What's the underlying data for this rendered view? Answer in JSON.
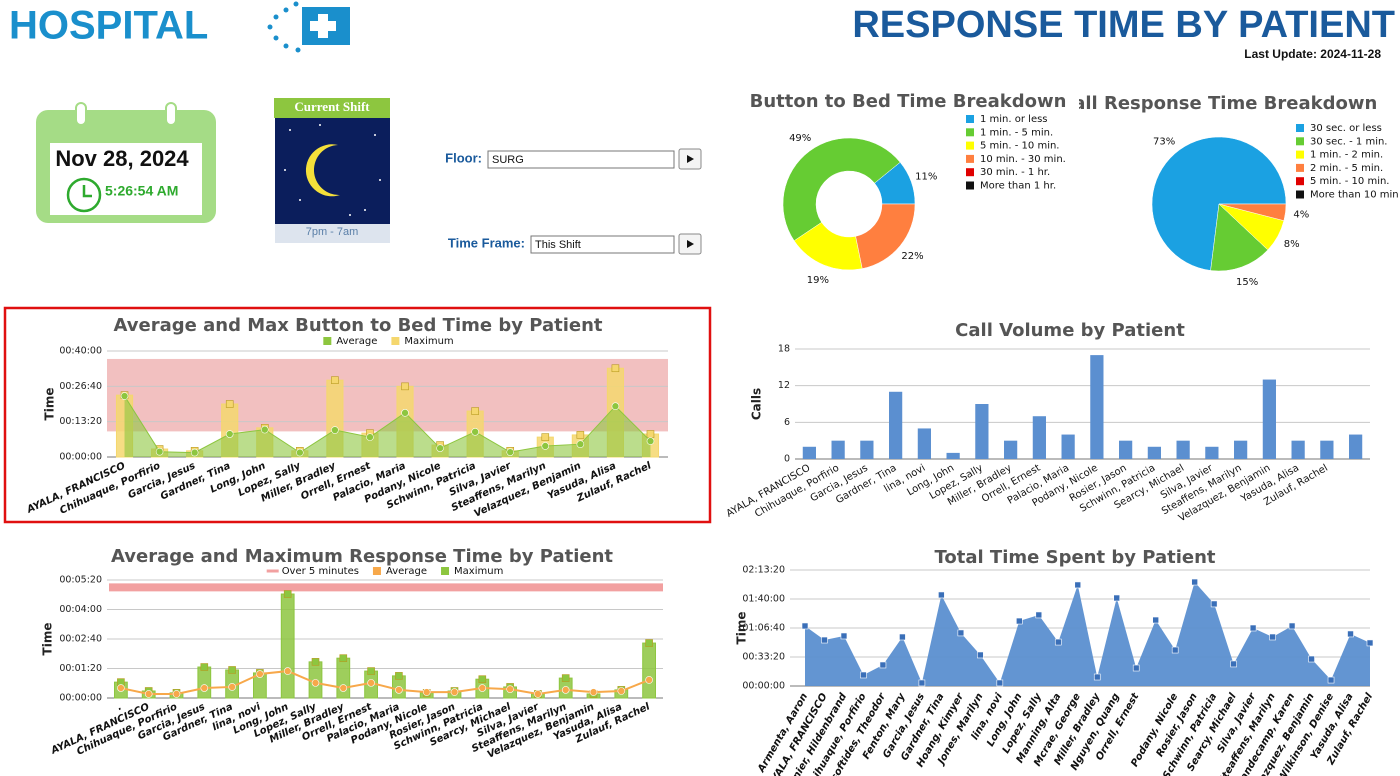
{
  "header": {
    "brand": "HOSPITAL",
    "title": "RESPONSE TIME BY PATIENT",
    "last_update": "Last Update: 2024-11-28"
  },
  "clock": {
    "date": "Nov 28, 2024",
    "time": "5:26:54 AM"
  },
  "shift": {
    "label": "Current Shift",
    "hours": "7pm - 7am"
  },
  "filters": [
    {
      "label": "Floor:",
      "value": "SURG"
    },
    {
      "label": "Time Frame:",
      "value": "This Shift"
    }
  ],
  "chart_data": [
    {
      "type": "pie",
      "donut": true,
      "title": "Button to Bed Time Breakdown",
      "categories": [
        "1 min. or less",
        "1 min. - 5 min.",
        "5 min. - 10 min.",
        "10 min. - 30 min.",
        "30 min. - 1 hr.",
        "More than 1 hr."
      ],
      "values": [
        11,
        49,
        19,
        22,
        0,
        0
      ],
      "value_labels": [
        "11%",
        "49%",
        "19%",
        "22%",
        null,
        null
      ],
      "colors": [
        "#1ba1e2",
        "#66cc33",
        "#ffff00",
        "#ff7f3f",
        "#e00000",
        "#111111"
      ]
    },
    {
      "type": "pie",
      "donut": false,
      "title": "Call Response Time Breakdown",
      "categories": [
        "30 sec. or less",
        "30 sec. - 1 min.",
        "1 min. - 2 min.",
        "2 min. - 5 min.",
        "5 min. - 10 min.",
        "More than 10 min"
      ],
      "values": [
        73,
        15,
        8,
        4,
        0,
        0
      ],
      "value_labels": [
        "73%",
        "15%",
        "8%",
        "4%",
        null,
        null
      ],
      "colors": [
        "#1ba1e2",
        "#66cc33",
        "#ffff00",
        "#ff7f3f",
        "#e00000",
        "#111111"
      ]
    },
    {
      "type": "combo",
      "title": "Average and Max Button to Bed Time by Patient",
      "ylabel": "Time",
      "categories": [
        "AYALA, FRANCISCO",
        "Chihuaque, Porfirio",
        "Garcia, Jesus",
        "Gardner, Tina",
        "Long, John",
        "Lopez, Sally",
        "Miller, Bradley",
        "Orrell, Ernest",
        "Palacio, Maria",
        "Podany, Nicole",
        "Schwinn, Patricia",
        "Silva, Javier",
        "Steaffens, Marilyn",
        "Velazquez, Benjamin",
        "Yasuda, Alisa",
        "Zulauf, Rachel"
      ],
      "ylim": [
        0,
        2400
      ],
      "yticks": [
        {
          "value": 0,
          "label": "00:00:00"
        },
        {
          "value": 800,
          "label": "00:13:20"
        },
        {
          "value": 1600,
          "label": "00:26:40"
        },
        {
          "value": 2400,
          "label": "00:40:00"
        }
      ],
      "band": {
        "from": 580,
        "to": 2220,
        "color": "#f2c0c0"
      },
      "series": [
        {
          "name": "Average",
          "kind": "area",
          "color": "#8dc63f",
          "values": [
            1380,
            120,
            100,
            520,
            620,
            100,
            610,
            450,
            1000,
            200,
            570,
            110,
            250,
            290,
            1150,
            360
          ]
        },
        {
          "name": "Maximum",
          "kind": "bar",
          "color": "#f5d76e",
          "values": [
            1400,
            180,
            140,
            1200,
            660,
            140,
            1740,
            540,
            1600,
            270,
            1040,
            140,
            450,
            500,
            2010,
            520
          ]
        }
      ]
    },
    {
      "type": "bar",
      "title": "Call Volume by Patient",
      "ylabel": "Calls",
      "color": "#5b8fd0",
      "categories": [
        "AYALA, FRANCISCO",
        "Chihuaque, Porfirio",
        "Garcia, Jesus",
        "Gardner, Tina",
        "lina, novi",
        "Long, John",
        "Lopez, Sally",
        "Miller, Bradley",
        "Orrell, Ernest",
        "Palacio, Maria",
        "Podany, Nicole",
        "Rosier, Jason",
        "Schwinn, Patricia",
        "Searcy, Michael",
        "Silva, Javier",
        "Steaffens, Marilyn",
        "Velazquez, Benjamin",
        "Yasuda, Alisa",
        "Zulauf, Rachel",
        null
      ],
      "values": [
        2,
        3,
        3,
        11,
        5,
        1,
        9,
        3,
        7,
        4,
        17,
        3,
        2,
        3,
        2,
        3,
        13,
        3,
        3,
        4
      ],
      "ylim": [
        0,
        18
      ],
      "yticks": [
        0,
        6,
        12,
        18
      ]
    },
    {
      "type": "combo",
      "title": "Average and Maximum Response Time by Patient",
      "ylabel": "Time",
      "categories": [
        ".",
        "AYALA, FRANCISCO",
        "Chihuaque, Porfirio",
        "Garcia, Jesus",
        "Gardner, Tina",
        "lina, novi",
        "Long, John",
        "Lopez, Sally",
        "Miller, Bradley",
        "Orrell, Ernest",
        "Palacio, Maria",
        "Podany, Nicole",
        "Rosier, Jason",
        "Schwinn, Patricia",
        "Searcy, Michael",
        "Silva, Javier",
        "Steaffens, Marilyn",
        "Velazquez, Benjamin",
        "Yasuda, Alisa",
        "Zulauf, Rachel"
      ],
      "ylim": [
        0,
        320
      ],
      "yticks": [
        {
          "value": 0,
          "label": "00:00:00"
        },
        {
          "value": 80,
          "label": "00:01:20"
        },
        {
          "value": 160,
          "label": "00:02:40"
        },
        {
          "value": 240,
          "label": "00:04:00"
        },
        {
          "value": 320,
          "label": "00:05:20"
        }
      ],
      "threshold": {
        "name": "Over 5 minutes",
        "value": 300,
        "color": "#f2a0a0"
      },
      "series": [
        {
          "name": "Average",
          "kind": "line",
          "color": "#f7a84a",
          "values": [
            27,
            11,
            11,
            27,
            30,
            65,
            73,
            41,
            27,
            41,
            22,
            16,
            16,
            27,
            24,
            11,
            22,
            16,
            19,
            49
          ]
        },
        {
          "name": "Maximum",
          "kind": "bar",
          "color": "#8dc63f",
          "values": [
            43,
            19,
            14,
            84,
            76,
            68,
            282,
            98,
            108,
            73,
            60,
            14,
            19,
            51,
            30,
            11,
            54,
            11,
            22,
            149
          ]
        }
      ]
    },
    {
      "type": "area",
      "title": "Total Time Spent by Patient",
      "ylabel": "Time",
      "color": "#5b8fd0",
      "categories": [
        "Armenta, Aaron",
        "AYALA, FRANCISCO",
        "Bernier, Hildenbrand",
        "Chihuaque, Porfirio",
        "utsoftides, Theodor",
        "Fenton, Mary",
        "Garcia, Jesus",
        "Gardner, Tina",
        "Hoang, Kimyer",
        "Jones, Marilyn",
        "lina, novi",
        "Long, John",
        "Lopez, Sally",
        "Manning, Alta",
        "Mcrae, George",
        "Miller, Bradley",
        "Nguyen, Quang",
        "Orrell, Ernest",
        null,
        "Podany, Nicole",
        "Rosier, Jason",
        "Schwinn, Patricia",
        "Searcy, Michael",
        "Silva, Javier",
        "Steaffens, Marilyn",
        "Vandecamp, Karen",
        "Velazquez, Benjamin",
        "Wilkinson, Denise",
        "Yasuda, Alisa",
        "Zulauf, Rachel"
      ],
      "values": [
        4140,
        3170,
        3450,
        760,
        1450,
        3380,
        210,
        6280,
        3660,
        2140,
        210,
        4480,
        4900,
        3030,
        6970,
        620,
        6070,
        1240,
        4550,
        2480,
        7170,
        5660,
        1520,
        4000,
        3380,
        4140,
        1860,
        410,
        3590,
        2970
      ],
      "ylim": [
        0,
        8000
      ],
      "yticks": [
        {
          "value": 0,
          "label": "00:00:00"
        },
        {
          "value": 2000,
          "label": "00:33:20"
        },
        {
          "value": 4000,
          "label": "01:06:40"
        },
        {
          "value": 6000,
          "label": "01:40:00"
        },
        {
          "value": 8000,
          "label": "02:13:20"
        }
      ]
    }
  ]
}
